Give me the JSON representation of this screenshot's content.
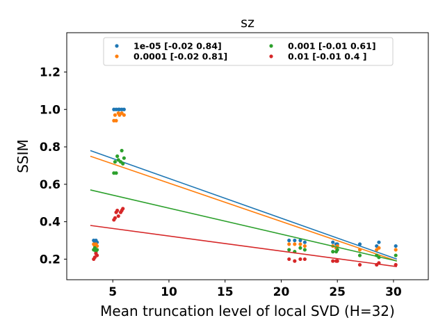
{
  "chart_data": {
    "type": "scatter",
    "title": "sz",
    "xlabel": "Mean truncation level of local SVD (H=32)",
    "ylabel": "SSIM",
    "xlim": [
      0.9,
      33.1
    ],
    "ylim": [
      0.09,
      1.41
    ],
    "xticks": [
      5,
      10,
      15,
      20,
      25,
      30
    ],
    "yticks": [
      0.2,
      0.4,
      0.6,
      0.8,
      1.0,
      1.2
    ],
    "ytick_labels": [
      "0.2",
      "0.4",
      "0.6",
      "0.8",
      "1.0",
      "1.2"
    ],
    "grid": false,
    "legend_position": "top-center",
    "legend_columns": 2,
    "series": [
      {
        "name": "1e-05 [-0.02  0.84]",
        "color": "#1f77b4",
        "points": [
          [
            3.3,
            0.3
          ],
          [
            3.4,
            0.29
          ],
          [
            3.5,
            0.3
          ],
          [
            3.6,
            0.29
          ],
          [
            5.1,
            1.0
          ],
          [
            5.3,
            1.0
          ],
          [
            5.5,
            1.0
          ],
          [
            5.6,
            1.0
          ],
          [
            5.8,
            1.0
          ],
          [
            6.0,
            1.0
          ],
          [
            20.7,
            0.3
          ],
          [
            21.2,
            0.3
          ],
          [
            21.7,
            0.3
          ],
          [
            22.1,
            0.29
          ],
          [
            24.6,
            0.29
          ],
          [
            24.9,
            0.28
          ],
          [
            25.0,
            0.28
          ],
          [
            27.0,
            0.28
          ],
          [
            28.5,
            0.27
          ],
          [
            28.7,
            0.29
          ],
          [
            30.2,
            0.27
          ]
        ],
        "fit": [
          [
            3.0,
            0.78
          ],
          [
            30.3,
            0.2
          ]
        ]
      },
      {
        "name": "0.0001 [-0.02  0.81]",
        "color": "#ff7f0e",
        "points": [
          [
            3.3,
            0.28
          ],
          [
            3.4,
            0.27
          ],
          [
            3.5,
            0.28
          ],
          [
            3.6,
            0.27
          ],
          [
            5.1,
            0.94
          ],
          [
            5.2,
            0.97
          ],
          [
            5.3,
            0.94
          ],
          [
            5.5,
            0.98
          ],
          [
            5.6,
            0.97
          ],
          [
            5.8,
            0.98
          ],
          [
            6.0,
            0.97
          ],
          [
            20.7,
            0.28
          ],
          [
            21.2,
            0.28
          ],
          [
            21.7,
            0.28
          ],
          [
            22.1,
            0.27
          ],
          [
            24.6,
            0.27
          ],
          [
            24.9,
            0.26
          ],
          [
            25.0,
            0.27
          ],
          [
            27.0,
            0.25
          ],
          [
            28.5,
            0.25
          ],
          [
            28.7,
            0.26
          ],
          [
            30.2,
            0.25
          ]
        ],
        "fit": [
          [
            3.0,
            0.75
          ],
          [
            30.3,
            0.19
          ]
        ]
      },
      {
        "name": "0.001 [-0.01  0.61]",
        "color": "#2ca02c",
        "points": [
          [
            3.3,
            0.25
          ],
          [
            3.4,
            0.26
          ],
          [
            3.5,
            0.24
          ],
          [
            3.6,
            0.25
          ],
          [
            5.1,
            0.66
          ],
          [
            5.2,
            0.72
          ],
          [
            5.3,
            0.66
          ],
          [
            5.4,
            0.75
          ],
          [
            5.5,
            0.73
          ],
          [
            5.7,
            0.72
          ],
          [
            5.8,
            0.78
          ],
          [
            5.9,
            0.71
          ],
          [
            6.0,
            0.74
          ],
          [
            20.7,
            0.25
          ],
          [
            21.2,
            0.24
          ],
          [
            21.7,
            0.26
          ],
          [
            22.1,
            0.25
          ],
          [
            24.6,
            0.24
          ],
          [
            24.9,
            0.24
          ],
          [
            25.0,
            0.25
          ],
          [
            27.0,
            0.22
          ],
          [
            28.5,
            0.22
          ],
          [
            28.7,
            0.21
          ],
          [
            30.2,
            0.22
          ]
        ],
        "fit": [
          [
            3.0,
            0.57
          ],
          [
            30.3,
            0.19
          ]
        ]
      },
      {
        "name": "0.01 [-0.01  0.4 ]",
        "color": "#d62728",
        "points": [
          [
            3.3,
            0.2
          ],
          [
            3.4,
            0.21
          ],
          [
            3.5,
            0.23
          ],
          [
            3.6,
            0.22
          ],
          [
            5.1,
            0.41
          ],
          [
            5.2,
            0.42
          ],
          [
            5.3,
            0.45
          ],
          [
            5.4,
            0.46
          ],
          [
            5.5,
            0.43
          ],
          [
            5.7,
            0.45
          ],
          [
            5.8,
            0.46
          ],
          [
            5.9,
            0.47
          ],
          [
            20.7,
            0.2
          ],
          [
            21.2,
            0.19
          ],
          [
            21.7,
            0.2
          ],
          [
            22.1,
            0.2
          ],
          [
            24.6,
            0.19
          ],
          [
            24.9,
            0.19
          ],
          [
            25.0,
            0.19
          ],
          [
            27.0,
            0.17
          ],
          [
            28.5,
            0.17
          ],
          [
            28.7,
            0.18
          ],
          [
            30.2,
            0.17
          ]
        ],
        "fit": [
          [
            3.0,
            0.38
          ],
          [
            30.3,
            0.16
          ]
        ]
      }
    ]
  }
}
